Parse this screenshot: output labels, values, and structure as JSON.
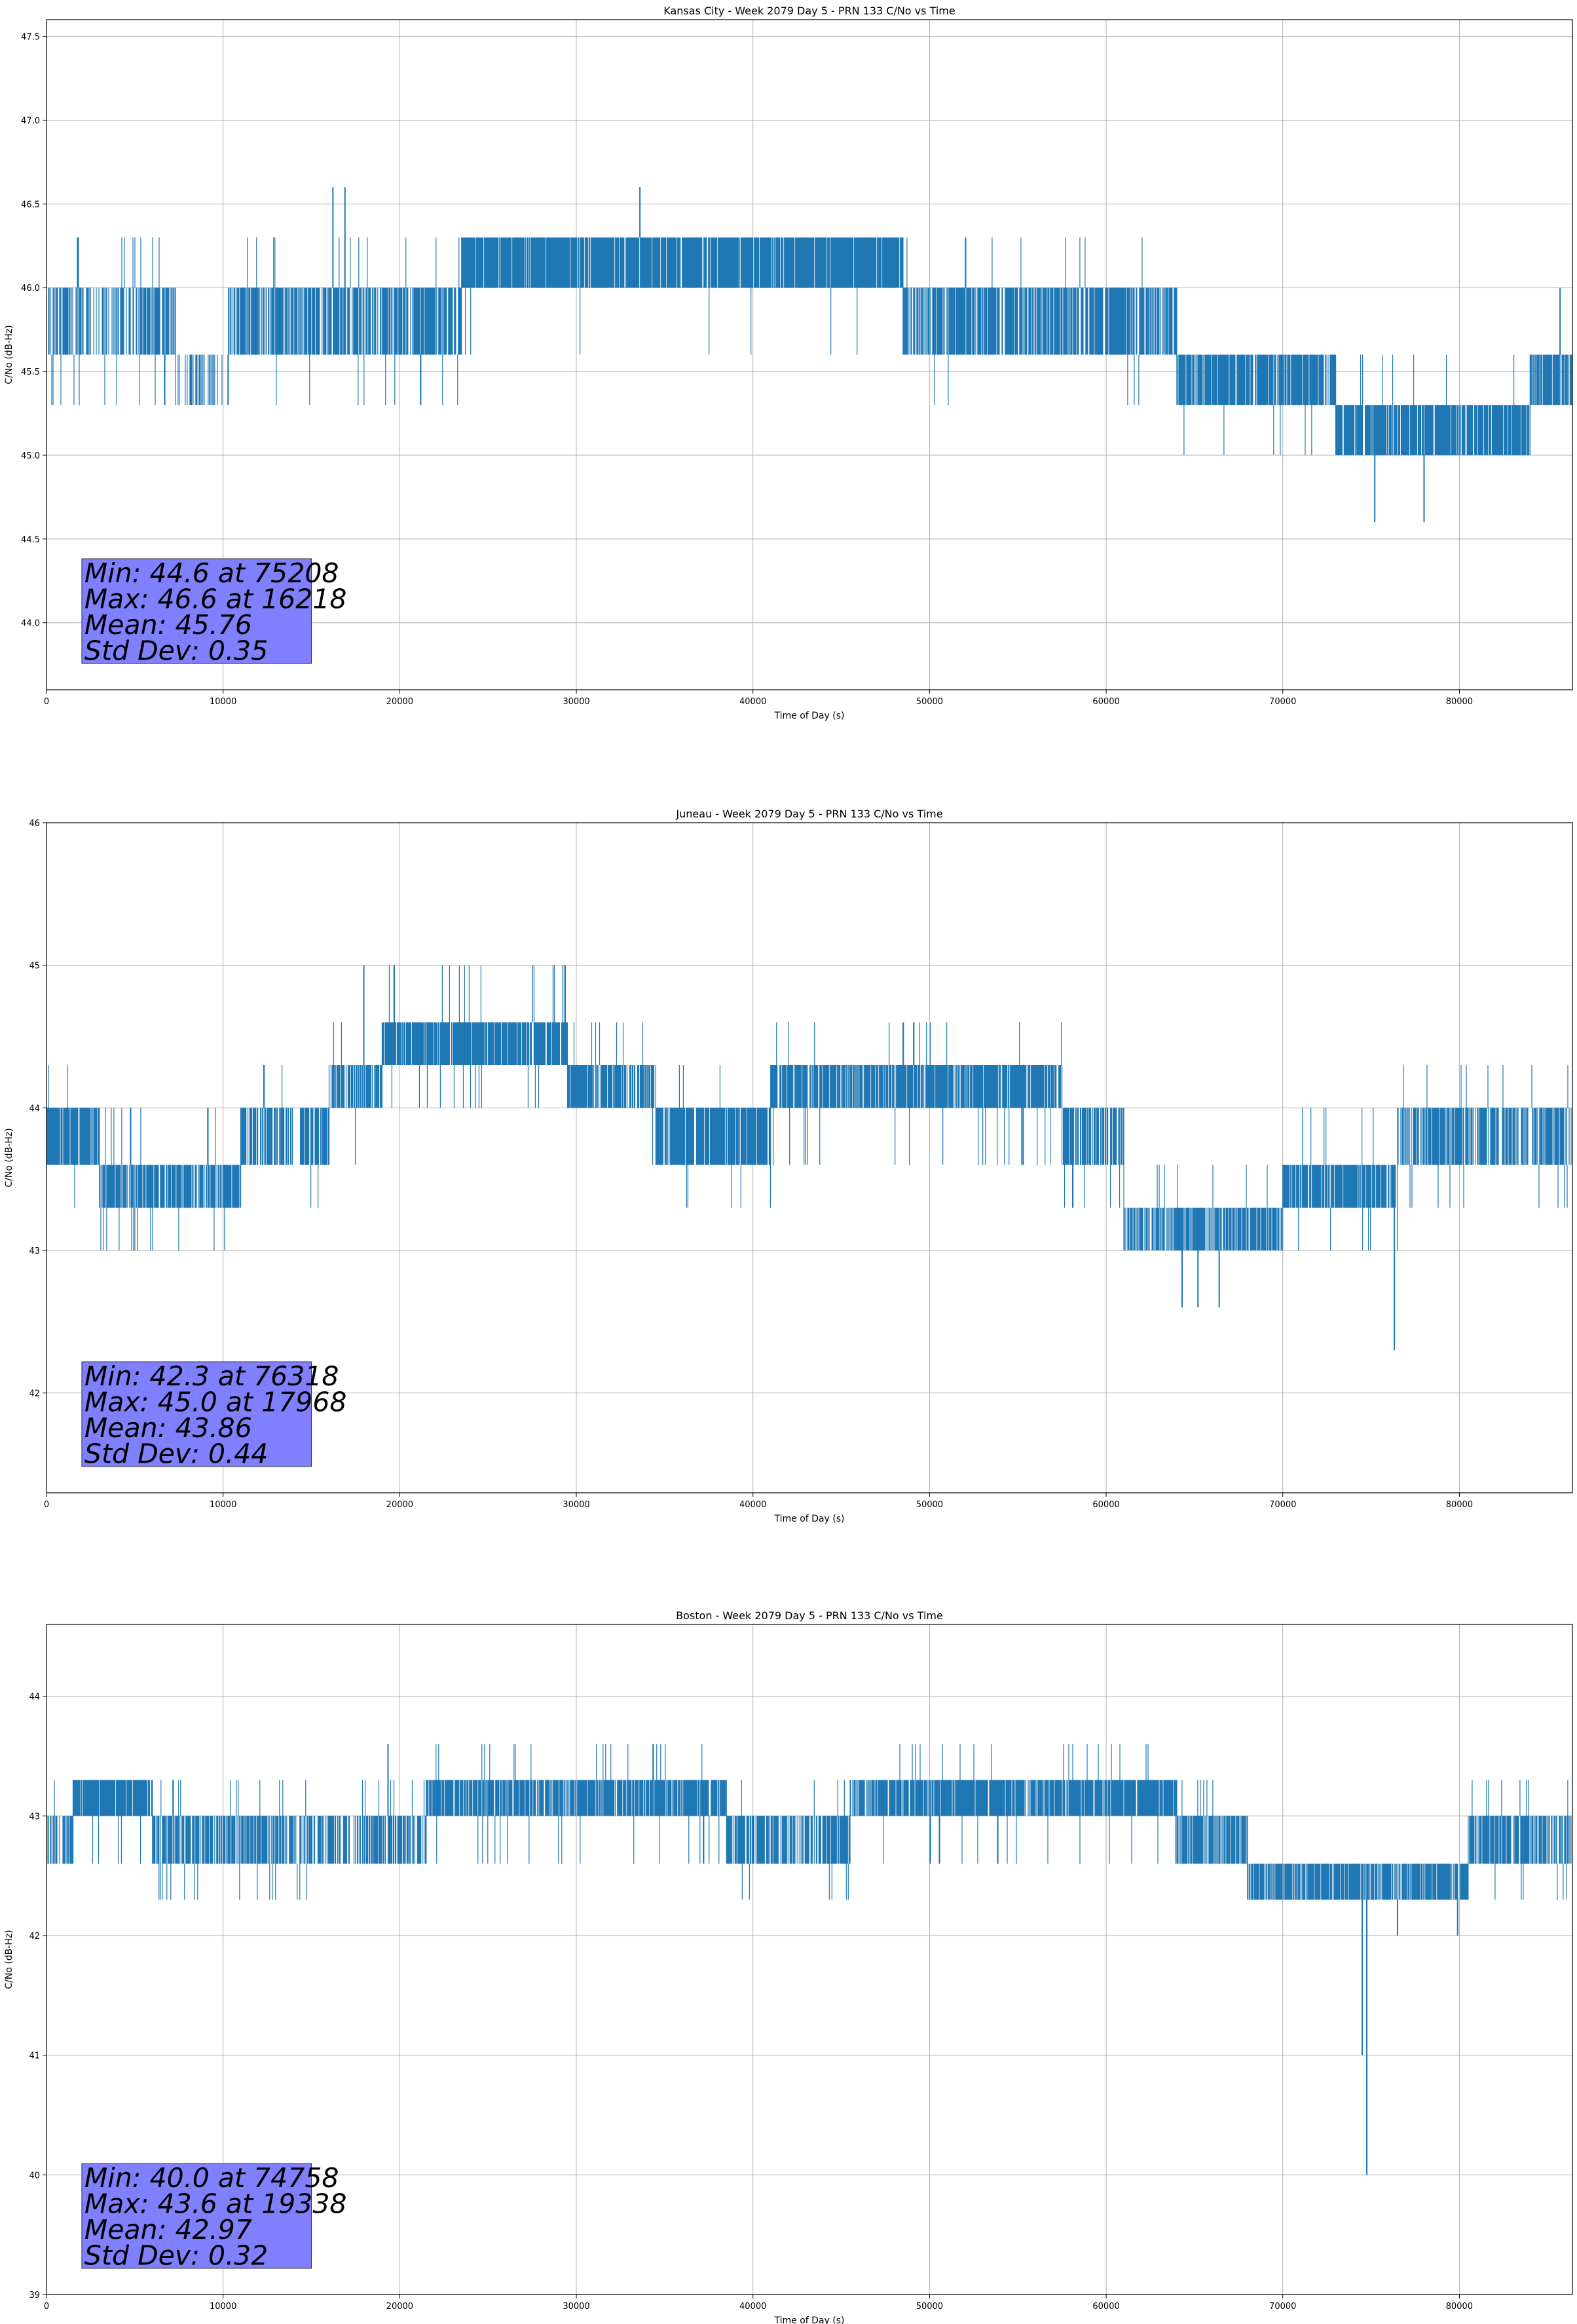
{
  "colors": {
    "series": "#1f77b4",
    "stats_box": "#8080ff"
  },
  "chart_data": [
    {
      "type": "line",
      "title": "Kansas City - Week 2079 Day 5 - PRN 133 C/No vs Time",
      "xlabel": "Time of Day (s)",
      "ylabel": "C/No (dB-Hz)",
      "xlim": [
        0,
        86400
      ],
      "ylim": [
        43.6,
        47.6
      ],
      "xticks": [
        0,
        10000,
        20000,
        30000,
        40000,
        50000,
        60000,
        70000,
        80000
      ],
      "xtick_labels": [
        "0",
        "10000",
        "20000",
        "30000",
        "40000",
        "50000",
        "60000",
        "70000",
        "80000"
      ],
      "yticks": [
        44.0,
        44.5,
        45.0,
        45.5,
        46.0,
        46.5,
        47.0,
        47.5
      ],
      "ytick_labels": [
        "44.0",
        "44.5",
        "45.0",
        "45.5",
        "46.0",
        "46.5",
        "47.0",
        "47.5"
      ],
      "grid": true,
      "quantization": 0.3,
      "segments": [
        {
          "x": [
            0,
            7300
          ],
          "lo": 45.6,
          "hi": 46.0,
          "up": 46.3,
          "down": 45.3,
          "fill": 0.62,
          "occ": 0.05
        },
        {
          "x": [
            7300,
            10300
          ],
          "lo": 45.3,
          "hi": 45.6,
          "up": 46.0,
          "down": 45.3,
          "fill": 0.3,
          "occ": 0.02
        },
        {
          "x": [
            10300,
            23500
          ],
          "lo": 45.6,
          "hi": 46.0,
          "up": 46.3,
          "down": 45.3,
          "fill": 0.72,
          "occ": 0.03
        },
        {
          "x": [
            23500,
            48500
          ],
          "lo": 46.0,
          "hi": 46.3,
          "up": 46.3,
          "down": 45.6,
          "fill": 0.9,
          "occ": 0.012
        },
        {
          "x": [
            48500,
            64000
          ],
          "lo": 45.6,
          "hi": 46.0,
          "up": 46.3,
          "down": 45.3,
          "fill": 0.78,
          "occ": 0.02
        },
        {
          "x": [
            64000,
            73000
          ],
          "lo": 45.3,
          "hi": 45.6,
          "up": 45.6,
          "down": 45.0,
          "fill": 0.85,
          "occ": 0.03
        },
        {
          "x": [
            73000,
            84000
          ],
          "lo": 45.0,
          "hi": 45.3,
          "up": 45.6,
          "down": 45.0,
          "fill": 0.85,
          "occ": 0.03
        },
        {
          "x": [
            84000,
            86400
          ],
          "lo": 45.3,
          "hi": 45.6,
          "up": 45.6,
          "down": 45.3,
          "fill": 0.85,
          "occ": 0.03
        }
      ],
      "spikes": [
        [
          16218,
          46.6
        ],
        [
          16900,
          46.6
        ],
        [
          33600,
          46.6
        ],
        [
          75208,
          44.6
        ],
        [
          78000,
          44.6
        ],
        [
          85700,
          46.0
        ]
      ],
      "stats": {
        "min_label": "Min: 44.6 at 75208",
        "max_label": "Max: 46.6 at 16218",
        "mean_label": "Mean: 45.76",
        "std_label": "Std Dev: 0.35"
      }
    },
    {
      "type": "line",
      "title": "Juneau - Week 2079 Day 5 - PRN 133 C/No vs Time",
      "xlabel": "Time of Day (s)",
      "ylabel": "C/No (dB-Hz)",
      "xlim": [
        0,
        86400
      ],
      "ylim": [
        41.3,
        46.0
      ],
      "xticks": [
        0,
        10000,
        20000,
        30000,
        40000,
        50000,
        60000,
        70000,
        80000
      ],
      "xtick_labels": [
        "0",
        "10000",
        "20000",
        "30000",
        "40000",
        "50000",
        "60000",
        "70000",
        "80000"
      ],
      "yticks": [
        42,
        43,
        44,
        45,
        46
      ],
      "ytick_labels": [
        "42",
        "43",
        "44",
        "45",
        "46"
      ],
      "grid": true,
      "quantization": 0.3,
      "segments": [
        {
          "x": [
            0,
            3000
          ],
          "lo": 43.6,
          "hi": 44.0,
          "up": 44.3,
          "down": 43.3,
          "fill": 0.85,
          "occ": 0.03
        },
        {
          "x": [
            3000,
            11000
          ],
          "lo": 43.3,
          "hi": 43.6,
          "up": 44.0,
          "down": 43.0,
          "fill": 0.7,
          "occ": 0.04
        },
        {
          "x": [
            11000,
            16000
          ],
          "lo": 43.6,
          "hi": 44.0,
          "up": 44.3,
          "down": 43.3,
          "fill": 0.7,
          "occ": 0.04
        },
        {
          "x": [
            16000,
            19000
          ],
          "lo": 44.0,
          "hi": 44.3,
          "up": 44.6,
          "down": 43.6,
          "fill": 0.7,
          "occ": 0.04
        },
        {
          "x": [
            19000,
            29500
          ],
          "lo": 44.3,
          "hi": 44.6,
          "up": 45.0,
          "down": 44.0,
          "fill": 0.85,
          "occ": 0.035
        },
        {
          "x": [
            29500,
            34500
          ],
          "lo": 44.0,
          "hi": 44.3,
          "up": 44.6,
          "down": 43.6,
          "fill": 0.75,
          "occ": 0.04
        },
        {
          "x": [
            34500,
            41000
          ],
          "lo": 43.6,
          "hi": 44.0,
          "up": 44.3,
          "down": 43.3,
          "fill": 0.85,
          "occ": 0.02
        },
        {
          "x": [
            41000,
            57500
          ],
          "lo": 44.0,
          "hi": 44.3,
          "up": 44.6,
          "down": 43.6,
          "fill": 0.85,
          "occ": 0.03
        },
        {
          "x": [
            57500,
            61000
          ],
          "lo": 43.6,
          "hi": 44.0,
          "up": 44.0,
          "down": 43.3,
          "fill": 0.7,
          "occ": 0.04
        },
        {
          "x": [
            61000,
            70000
          ],
          "lo": 43.0,
          "hi": 43.3,
          "up": 43.6,
          "down": 43.0,
          "fill": 0.78,
          "occ": 0.03
        },
        {
          "x": [
            70000,
            76500
          ],
          "lo": 43.3,
          "hi": 43.6,
          "up": 44.0,
          "down": 43.0,
          "fill": 0.82,
          "occ": 0.03
        },
        {
          "x": [
            76500,
            86400
          ],
          "lo": 43.6,
          "hi": 44.0,
          "up": 44.3,
          "down": 43.3,
          "fill": 0.72,
          "occ": 0.04
        }
      ],
      "spikes": [
        [
          17968,
          45.0
        ],
        [
          64300,
          42.6
        ],
        [
          65200,
          42.6
        ],
        [
          66400,
          42.6
        ],
        [
          76318,
          42.3
        ]
      ],
      "stats": {
        "min_label": "Min: 42.3 at 76318",
        "max_label": "Max: 45.0 at 17968",
        "mean_label": "Mean: 43.86",
        "std_label": "Std Dev: 0.44"
      }
    },
    {
      "type": "line",
      "title": "Boston - Week 2079 Day 5 - PRN 133 C/No vs Time",
      "xlabel": "Time of Day (s)",
      "ylabel": "C/No (dB-Hz)",
      "xlim": [
        0,
        86400
      ],
      "ylim": [
        39.0,
        44.6
      ],
      "xticks": [
        0,
        10000,
        20000,
        30000,
        40000,
        50000,
        60000,
        70000,
        80000
      ],
      "xtick_labels": [
        "0",
        "10000",
        "20000",
        "30000",
        "40000",
        "50000",
        "60000",
        "70000",
        "80000"
      ],
      "yticks": [
        39,
        40,
        41,
        42,
        43,
        44
      ],
      "ytick_labels": [
        "39",
        "40",
        "41",
        "42",
        "43",
        "44"
      ],
      "grid": true,
      "quantization": 0.3,
      "segments": [
        {
          "x": [
            0,
            1500
          ],
          "lo": 42.6,
          "hi": 43.0,
          "up": 43.3,
          "down": 42.6,
          "fill": 0.7,
          "occ": 0.05
        },
        {
          "x": [
            1500,
            6000
          ],
          "lo": 43.0,
          "hi": 43.3,
          "up": 43.3,
          "down": 42.6,
          "fill": 0.9,
          "occ": 0.03
        },
        {
          "x": [
            6000,
            15000
          ],
          "lo": 42.6,
          "hi": 43.0,
          "up": 43.3,
          "down": 42.3,
          "fill": 0.75,
          "occ": 0.04
        },
        {
          "x": [
            15000,
            21500
          ],
          "lo": 42.6,
          "hi": 43.0,
          "up": 43.3,
          "down": 42.6,
          "fill": 0.7,
          "occ": 0.04
        },
        {
          "x": [
            21500,
            38500
          ],
          "lo": 43.0,
          "hi": 43.3,
          "up": 43.6,
          "down": 42.6,
          "fill": 0.8,
          "occ": 0.04
        },
        {
          "x": [
            38500,
            45500
          ],
          "lo": 42.6,
          "hi": 43.0,
          "up": 43.3,
          "down": 42.3,
          "fill": 0.7,
          "occ": 0.04
        },
        {
          "x": [
            45500,
            64000
          ],
          "lo": 43.0,
          "hi": 43.3,
          "up": 43.6,
          "down": 42.6,
          "fill": 0.85,
          "occ": 0.04
        },
        {
          "x": [
            64000,
            68000
          ],
          "lo": 42.6,
          "hi": 43.0,
          "up": 43.3,
          "down": 42.6,
          "fill": 0.75,
          "occ": 0.03
        },
        {
          "x": [
            68000,
            80500
          ],
          "lo": 42.3,
          "hi": 42.6,
          "up": 42.6,
          "down": 42.3,
          "fill": 0.85,
          "occ": 0.03
        },
        {
          "x": [
            80500,
            86400
          ],
          "lo": 42.6,
          "hi": 43.0,
          "up": 43.3,
          "down": 42.3,
          "fill": 0.75,
          "occ": 0.04
        }
      ],
      "spikes": [
        [
          19338,
          43.6
        ],
        [
          74500,
          41.0
        ],
        [
          74758,
          40.0
        ],
        [
          76500,
          42.0
        ],
        [
          79900,
          42.0
        ]
      ],
      "stats": {
        "min_label": "Min: 40.0 at 74758",
        "max_label": "Max: 43.6 at 19338",
        "mean_label": "Mean: 42.97",
        "std_label": "Std Dev: 0.32"
      }
    }
  ]
}
